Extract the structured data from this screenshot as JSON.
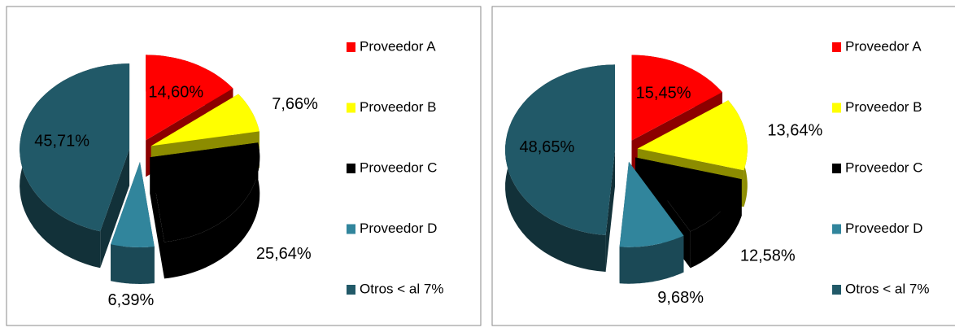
{
  "chart_data": [
    {
      "type": "pie",
      "categories": [
        "Proveedor A",
        "Proveedor B",
        "Proveedor C",
        "Proveedor D",
        "Otros < al 7%"
      ],
      "values": [
        14.6,
        7.66,
        25.64,
        6.39,
        45.71
      ],
      "value_labels": [
        "14,60%",
        "7,66%",
        "25,64%",
        "6,39%",
        "45,71%"
      ],
      "colors": [
        "#ff0000",
        "#ffff00",
        "#000000",
        "#31859c",
        "#215968"
      ],
      "legend": "right"
    },
    {
      "type": "pie",
      "categories": [
        "Proveedor A",
        "Proveedor B",
        "Proveedor C",
        "Proveedor D",
        "Otros < al 7%"
      ],
      "values": [
        15.45,
        13.64,
        12.58,
        9.68,
        48.65
      ],
      "value_labels": [
        "15,45%",
        "13,64%",
        "12,58%",
        "9,68%",
        "48,65%"
      ],
      "colors": [
        "#ff0000",
        "#ffff00",
        "#000000",
        "#31859c",
        "#215968"
      ],
      "legend": "right"
    }
  ]
}
